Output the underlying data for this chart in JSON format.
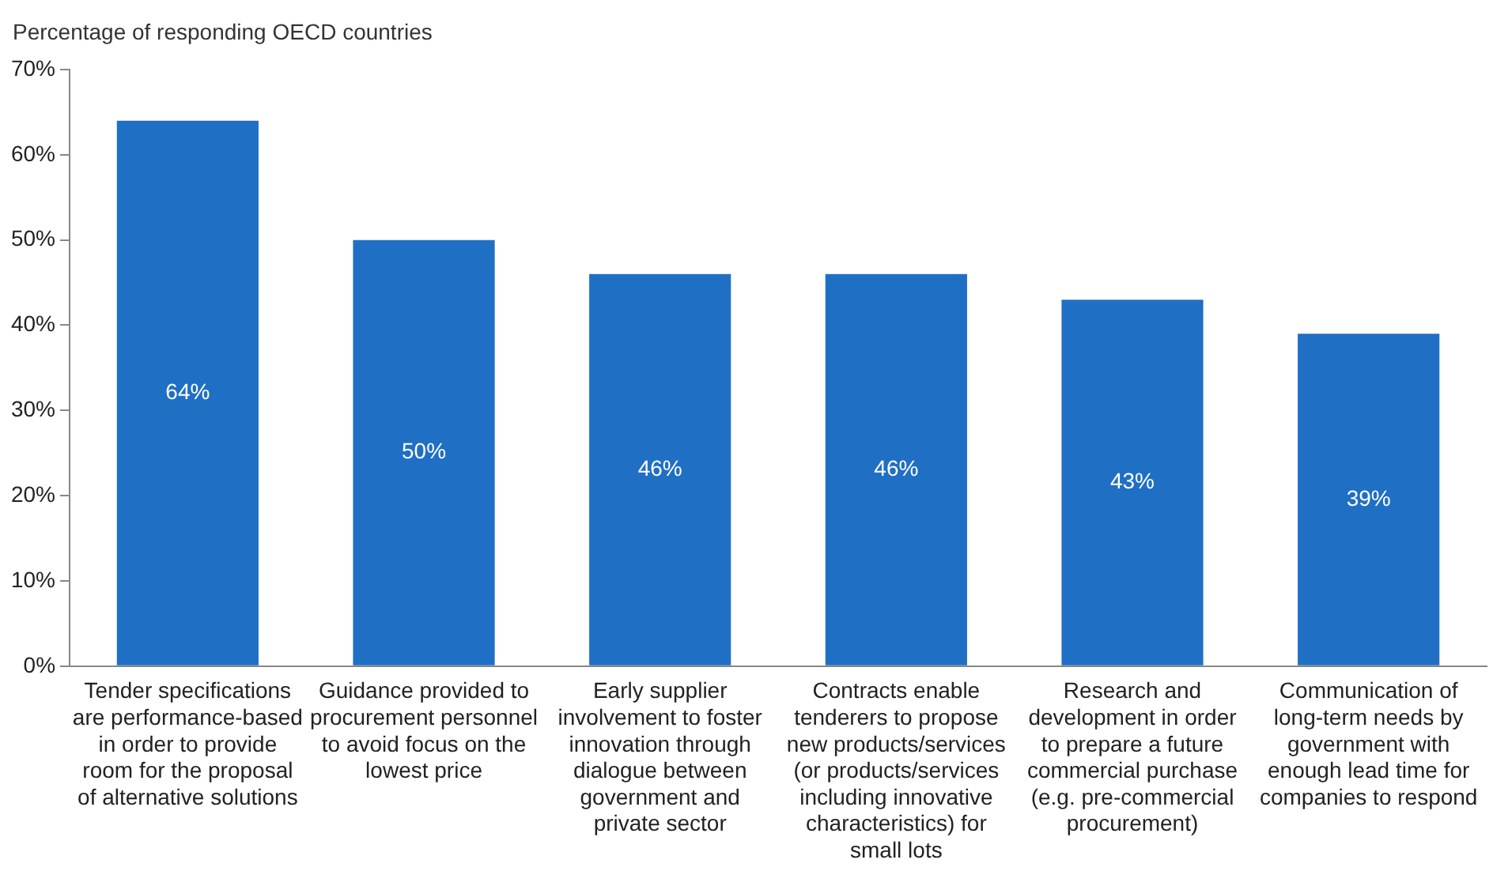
{
  "chart_data": {
    "type": "bar",
    "ylabel": "Percentage of responding OECD countries",
    "categories": [
      "Tender specifications are performance-based in order to provide room for the proposal of alternative solutions",
      "Guidance provided to procurement personnel to avoid focus on the lowest price",
      "Early supplier involvement to foster innovation through dialogue between government and private sector",
      "Contracts enable tenderers to propose new products/services (or products/services including innovative characteristics) for small lots",
      "Research and development in order to prepare a future commercial purchase (e.g. pre-commercial procurement)",
      "Communication of long-term needs by government with enough lead time for companies to respond"
    ],
    "values": [
      64,
      50,
      46,
      46,
      43,
      39
    ],
    "value_labels": [
      "64%",
      "50%",
      "46%",
      "46%",
      "43%",
      "39%"
    ],
    "color": "#1f6fc5",
    "ylim": [
      0,
      70
    ],
    "yticks": [
      {
        "value": 0,
        "label": "0%"
      },
      {
        "value": 10,
        "label": "10%"
      },
      {
        "value": 20,
        "label": "20%"
      },
      {
        "value": 30,
        "label": "30%"
      },
      {
        "value": 40,
        "label": "40%"
      },
      {
        "value": 50,
        "label": "50%"
      },
      {
        "value": 60,
        "label": "60%"
      },
      {
        "value": 70,
        "label": "70%"
      }
    ],
    "grid": false,
    "legend": false
  }
}
